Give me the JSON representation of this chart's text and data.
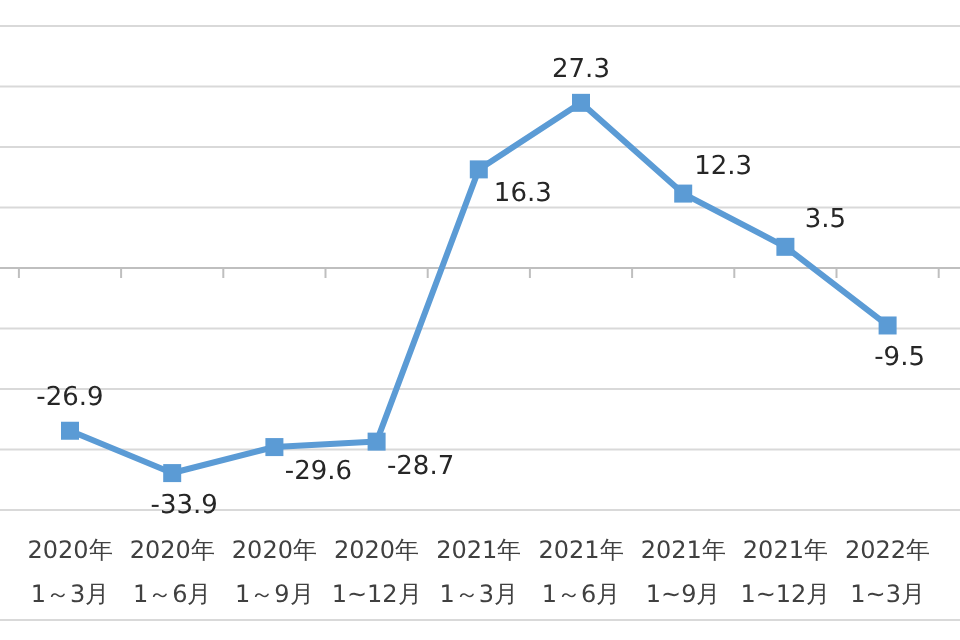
{
  "chart_data": {
    "type": "line",
    "categories": [
      "2020年 1～3月",
      "2020年 1～6月",
      "2020年 1～9月",
      "2020年 1~12月",
      "2021年 1～3月",
      "2021年 1～6月",
      "2021年 1~9月",
      "2021年 1~12月",
      "2022年 1~3月"
    ],
    "series": [
      {
        "color": "#5b9bd5",
        "values": [
          -26.9,
          -33.9,
          -29.6,
          -28.7,
          16.3,
          27.3,
          12.3,
          3.5,
          -9.5
        ]
      }
    ],
    "ylim": [
      -40,
      40
    ],
    "yticks": [
      {
        "value": -40,
        "label": null
      },
      {
        "value": -30,
        "label": null
      },
      {
        "value": -20,
        "label": null
      },
      {
        "value": -10,
        "label": null
      },
      {
        "value": 0,
        "label": null
      },
      {
        "value": 10,
        "label": null
      },
      {
        "value": 20,
        "label": null
      },
      {
        "value": 30,
        "label": null
      },
      {
        "value": 40,
        "label": null
      }
    ],
    "grid": "y",
    "tick_labels": "x",
    "data_labels": true,
    "marker": "square",
    "line_style": "solid"
  }
}
